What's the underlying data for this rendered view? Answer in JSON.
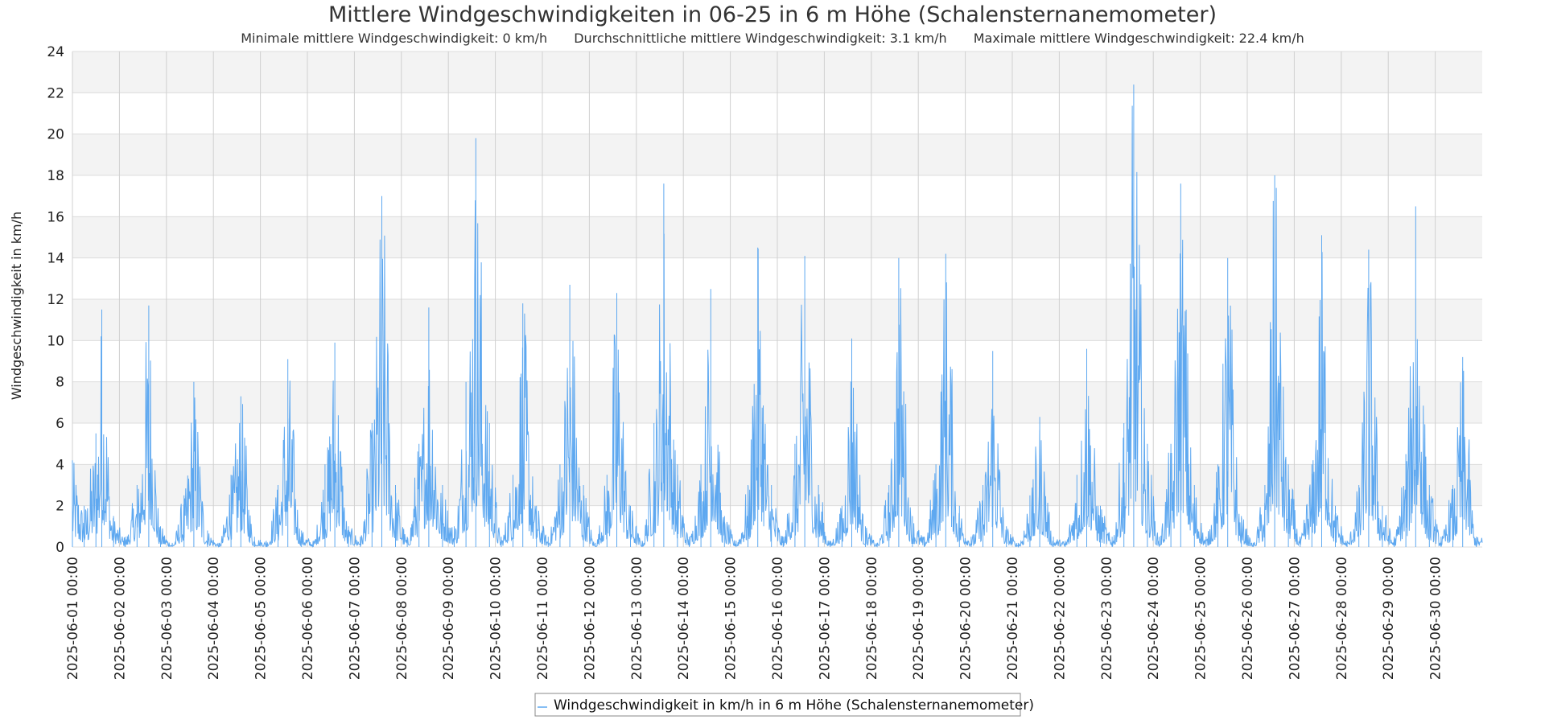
{
  "chart_data": {
    "type": "line",
    "title": "Mittlere Windgeschwindigkeiten in 06-25 in 6 m Höhe (Schalensternanemometer)",
    "subtitle_parts": [
      "Minimale mittlere Windgeschwindigkeit: 0 km/h",
      "Durchschnittliche mittlere Windgeschwindigkeit: 3.1 km/h",
      "Maximale mittlere Windgeschwindigkeit: 22.4 km/h"
    ],
    "xlabel": "",
    "ylabel": "Windgeschwindigkeit in km/h",
    "ylim": [
      0,
      24
    ],
    "yticks": [
      0,
      2,
      4,
      6,
      8,
      10,
      12,
      14,
      16,
      18,
      20,
      22,
      24
    ],
    "xlim": [
      "2025-06-01 00:00",
      "2025-07-01 00:00"
    ],
    "xticks": [
      "2025-06-01 00:00",
      "2025-06-02 00:00",
      "2025-06-03 00:00",
      "2025-06-04 00:00",
      "2025-06-05 00:00",
      "2025-06-06 00:00",
      "2025-06-07 00:00",
      "2025-06-08 00:00",
      "2025-06-09 00:00",
      "2025-06-10 00:00",
      "2025-06-11 00:00",
      "2025-06-12 00:00",
      "2025-06-13 00:00",
      "2025-06-14 00:00",
      "2025-06-15 00:00",
      "2025-06-16 00:00",
      "2025-06-17 00:00",
      "2025-06-18 00:00",
      "2025-06-19 00:00",
      "2025-06-20 00:00",
      "2025-06-21 00:00",
      "2025-06-22 00:00",
      "2025-06-23 00:00",
      "2025-06-24 00:00",
      "2025-06-25 00:00",
      "2025-06-26 00:00",
      "2025-06-27 00:00",
      "2025-06-28 00:00",
      "2025-06-29 00:00",
      "2025-06-30 00:00"
    ],
    "grid": true,
    "legend_placement": "bottom-center",
    "series": [
      {
        "name": "Windgeschwindigkeit in km/h in 6 m Höhe (Schalensternanemometer)",
        "color": "#5ea8f0",
        "envelope_note_values_are_day_and_peak_estimates": true,
        "x": [
          "2025-06-01 00:00",
          "2025-06-01 06:00",
          "2025-06-01 12:00",
          "2025-06-01 15:00",
          "2025-06-01 21:00",
          "2025-06-02 03:00",
          "2025-06-02 09:00",
          "2025-06-02 15:00",
          "2025-06-02 21:00",
          "2025-06-03 03:00",
          "2025-06-03 09:00",
          "2025-06-03 14:00",
          "2025-06-03 21:00",
          "2025-06-04 03:00",
          "2025-06-04 09:00",
          "2025-06-04 14:00",
          "2025-06-04 21:00",
          "2025-06-05 03:00",
          "2025-06-05 09:00",
          "2025-06-05 14:00",
          "2025-06-05 21:00",
          "2025-06-06 03:00",
          "2025-06-06 09:00",
          "2025-06-06 14:00",
          "2025-06-06 21:00",
          "2025-06-07 03:00",
          "2025-06-07 09:00",
          "2025-06-07 14:00",
          "2025-06-07 21:00",
          "2025-06-08 03:00",
          "2025-06-08 09:00",
          "2025-06-08 14:00",
          "2025-06-08 21:00",
          "2025-06-09 03:00",
          "2025-06-09 09:00",
          "2025-06-09 14:00",
          "2025-06-09 21:00",
          "2025-06-10 03:00",
          "2025-06-10 09:00",
          "2025-06-10 14:00",
          "2025-06-10 21:00",
          "2025-06-11 03:00",
          "2025-06-11 09:00",
          "2025-06-11 14:00",
          "2025-06-11 21:00",
          "2025-06-12 03:00",
          "2025-06-12 09:00",
          "2025-06-12 14:00",
          "2025-06-12 21:00",
          "2025-06-13 03:00",
          "2025-06-13 09:00",
          "2025-06-13 14:00",
          "2025-06-13 21:00",
          "2025-06-14 03:00",
          "2025-06-14 09:00",
          "2025-06-14 14:00",
          "2025-06-14 21:00",
          "2025-06-15 03:00",
          "2025-06-15 09:00",
          "2025-06-15 14:00",
          "2025-06-15 21:00",
          "2025-06-16 03:00",
          "2025-06-16 09:00",
          "2025-06-16 14:00",
          "2025-06-16 21:00",
          "2025-06-17 03:00",
          "2025-06-17 09:00",
          "2025-06-17 14:00",
          "2025-06-17 21:00",
          "2025-06-18 03:00",
          "2025-06-18 09:00",
          "2025-06-18 14:00",
          "2025-06-18 21:00",
          "2025-06-19 03:00",
          "2025-06-19 09:00",
          "2025-06-19 14:00",
          "2025-06-19 21:00",
          "2025-06-20 03:00",
          "2025-06-20 09:00",
          "2025-06-20 14:00",
          "2025-06-20 21:00",
          "2025-06-21 03:00",
          "2025-06-21 09:00",
          "2025-06-21 14:00",
          "2025-06-21 21:00",
          "2025-06-22 03:00",
          "2025-06-22 09:00",
          "2025-06-22 14:00",
          "2025-06-22 21:00",
          "2025-06-23 03:00",
          "2025-06-23 09:00",
          "2025-06-23 14:00",
          "2025-06-23 21:00",
          "2025-06-24 03:00",
          "2025-06-24 09:00",
          "2025-06-24 14:00",
          "2025-06-24 21:00",
          "2025-06-25 03:00",
          "2025-06-25 09:00",
          "2025-06-25 14:00",
          "2025-06-25 21:00",
          "2025-06-26 03:00",
          "2025-06-26 09:00",
          "2025-06-26 14:00",
          "2025-06-26 21:00",
          "2025-06-27 03:00",
          "2025-06-27 09:00",
          "2025-06-27 14:00",
          "2025-06-27 21:00",
          "2025-06-28 03:00",
          "2025-06-28 09:00",
          "2025-06-28 14:00",
          "2025-06-28 21:00",
          "2025-06-29 03:00",
          "2025-06-29 09:00",
          "2025-06-29 14:00",
          "2025-06-29 21:00",
          "2025-06-30 03:00",
          "2025-06-30 09:00",
          "2025-06-30 14:00",
          "2025-06-30 21:00"
        ],
        "y": [
          4.2,
          2.0,
          5.5,
          11.5,
          1.5,
          0.5,
          3.0,
          11.7,
          1.0,
          0.2,
          2.5,
          8.0,
          0.8,
          0.2,
          3.5,
          7.3,
          0.5,
          0.3,
          3.0,
          9.1,
          0.8,
          0.3,
          4.0,
          9.9,
          1.0,
          0.5,
          6.0,
          17.0,
          3.0,
          0.5,
          5.0,
          11.6,
          3.0,
          1.0,
          8.0,
          19.8,
          6.0,
          0.5,
          3.5,
          11.8,
          2.0,
          0.5,
          4.0,
          12.7,
          3.0,
          0.2,
          3.5,
          12.3,
          2.0,
          0.3,
          6.0,
          17.6,
          4.0,
          0.5,
          4.0,
          12.5,
          1.5,
          0.3,
          3.0,
          14.5,
          3.0,
          0.5,
          5.0,
          14.1,
          3.0,
          0.3,
          2.0,
          10.1,
          1.0,
          0.2,
          3.0,
          14.0,
          1.5,
          0.5,
          4.0,
          14.2,
          2.0,
          0.5,
          3.0,
          9.5,
          1.0,
          0.2,
          2.5,
          6.3,
          0.5,
          0.3,
          3.5,
          9.6,
          2.0,
          0.5,
          6.0,
          22.4,
          5.0,
          0.5,
          5.0,
          17.6,
          3.0,
          0.5,
          4.0,
          14.0,
          1.5,
          0.2,
          3.0,
          18.0,
          4.0,
          0.5,
          4.0,
          15.1,
          2.0,
          0.3,
          3.0,
          14.4,
          2.0,
          0.5,
          4.5,
          16.5,
          3.0,
          0.5,
          3.0,
          9.2,
          0.5
        ]
      }
    ]
  }
}
